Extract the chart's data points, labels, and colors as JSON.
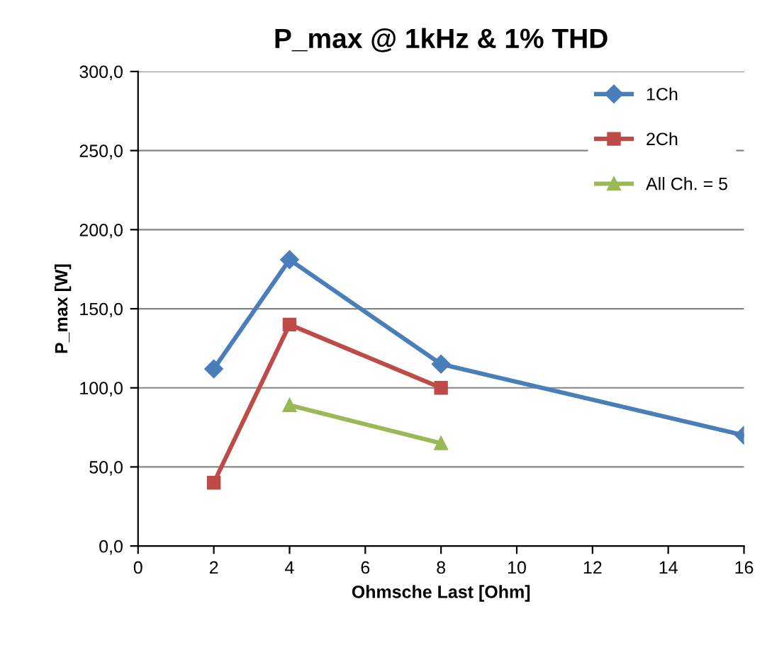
{
  "chart_data": {
    "type": "line",
    "title": "P_max @ 1kHz & 1% THD",
    "xlabel": "Ohmsche Last [Ohm]",
    "ylabel": "P_max [W]",
    "series": [
      {
        "name": "1Ch",
        "color": "#4a7ebb",
        "marker": "diamond",
        "x": [
          2,
          4,
          8,
          16
        ],
        "values": [
          112,
          181,
          115,
          70
        ]
      },
      {
        "name": "2Ch",
        "color": "#be4b48",
        "marker": "square",
        "x": [
          2,
          4,
          8
        ],
        "values": [
          40,
          140,
          100
        ]
      },
      {
        "name": "All Ch. = 5",
        "color": "#98b954",
        "marker": "triangle",
        "x": [
          4,
          8
        ],
        "values": [
          89,
          65
        ]
      }
    ],
    "xlim": [
      0,
      16
    ],
    "xticks": [
      0,
      2,
      4,
      6,
      8,
      10,
      12,
      14,
      16
    ],
    "ylim": [
      0,
      300
    ],
    "yticks": [
      {
        "value": 0,
        "label": "0,0"
      },
      {
        "value": 50,
        "label": "50,0"
      },
      {
        "value": 100,
        "label": "100,0"
      },
      {
        "value": 150,
        "label": "150,0"
      },
      {
        "value": 200,
        "label": "200,0"
      },
      {
        "value": 250,
        "label": "250,0"
      },
      {
        "value": 300,
        "label": "300,0"
      }
    ],
    "grid": "y",
    "legend": "top right"
  }
}
